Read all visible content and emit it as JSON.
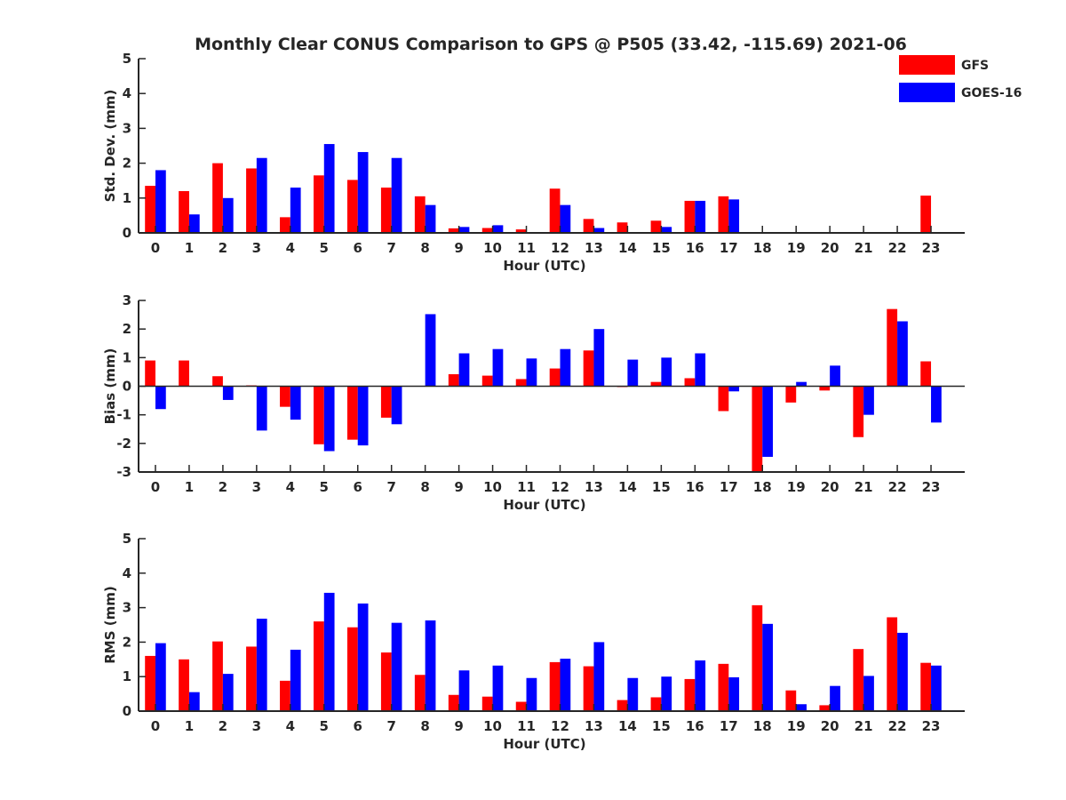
{
  "figure": {
    "title": "Monthly Clear CONUS Comparison to GPS @ P505 (33.42, -115.69) 2021-06"
  },
  "legend": {
    "placement": "top-right",
    "entries": [
      {
        "label": "GFS",
        "color": "#ff0000"
      },
      {
        "label": "GOES-16",
        "color": "#0000ff"
      }
    ]
  },
  "chart_data": [
    {
      "type": "bar",
      "ylabel": "Std. Dev. (mm)",
      "xlabel": "Hour (UTC)",
      "ylim": [
        0,
        5
      ],
      "yticks": [
        0,
        1,
        2,
        3,
        4,
        5
      ],
      "categories": [
        "0",
        "1",
        "2",
        "3",
        "4",
        "5",
        "6",
        "7",
        "8",
        "9",
        "10",
        "11",
        "12",
        "13",
        "14",
        "15",
        "16",
        "17",
        "18",
        "19",
        "20",
        "21",
        "22",
        "23"
      ],
      "series": [
        {
          "name": "GFS",
          "color": "#ff0000",
          "values": [
            1.35,
            1.2,
            2.0,
            1.85,
            0.45,
            1.65,
            1.52,
            1.3,
            1.05,
            0.13,
            0.14,
            0.1,
            1.27,
            0.4,
            0.3,
            0.35,
            0.92,
            1.05,
            null,
            null,
            null,
            null,
            null,
            1.07
          ]
        },
        {
          "name": "GOES-16",
          "color": "#0000ff",
          "values": [
            1.8,
            0.53,
            1.0,
            2.15,
            1.3,
            2.55,
            2.32,
            2.15,
            0.8,
            0.17,
            0.22,
            null,
            0.8,
            0.14,
            null,
            0.17,
            0.92,
            0.96,
            null,
            null,
            null,
            null,
            null,
            null
          ]
        }
      ]
    },
    {
      "type": "bar",
      "ylabel": "Bias (mm)",
      "xlabel": "Hour (UTC)",
      "ylim": [
        -3,
        3
      ],
      "yticks": [
        -3,
        -2,
        -1,
        0,
        1,
        2,
        3
      ],
      "categories": [
        "0",
        "1",
        "2",
        "3",
        "4",
        "5",
        "6",
        "7",
        "8",
        "9",
        "10",
        "11",
        "12",
        "13",
        "14",
        "15",
        "16",
        "17",
        "18",
        "19",
        "20",
        "21",
        "22",
        "23"
      ],
      "series": [
        {
          "name": "GFS",
          "color": "#ff0000",
          "values": [
            0.9,
            0.9,
            0.35,
            0.03,
            -0.72,
            -2.03,
            -1.87,
            -1.1,
            null,
            0.42,
            0.37,
            0.25,
            0.62,
            1.25,
            -0.03,
            0.15,
            0.28,
            -0.87,
            -3.0,
            -0.57,
            -0.15,
            -1.78,
            2.7,
            0.87
          ]
        },
        {
          "name": "GOES-16",
          "color": "#0000ff",
          "values": [
            -0.8,
            null,
            -0.48,
            -1.55,
            -1.17,
            -2.27,
            -2.07,
            -1.33,
            2.52,
            1.15,
            1.3,
            0.97,
            1.3,
            2.0,
            0.93,
            1.0,
            1.15,
            -0.18,
            -2.47,
            0.15,
            0.72,
            -1.0,
            2.27,
            -1.27
          ]
        }
      ]
    },
    {
      "type": "bar",
      "ylabel": "RMS (mm)",
      "xlabel": "Hour (UTC)",
      "ylim": [
        0,
        5
      ],
      "yticks": [
        0,
        1,
        2,
        3,
        4,
        5
      ],
      "categories": [
        "0",
        "1",
        "2",
        "3",
        "4",
        "5",
        "6",
        "7",
        "8",
        "9",
        "10",
        "11",
        "12",
        "13",
        "14",
        "15",
        "16",
        "17",
        "18",
        "19",
        "20",
        "21",
        "22",
        "23"
      ],
      "series": [
        {
          "name": "GFS",
          "color": "#ff0000",
          "values": [
            1.6,
            1.5,
            2.02,
            1.87,
            0.88,
            2.6,
            2.43,
            1.7,
            1.05,
            0.47,
            0.42,
            0.27,
            1.42,
            1.3,
            0.32,
            0.4,
            0.93,
            1.37,
            3.07,
            0.6,
            0.17,
            1.8,
            2.72,
            1.4
          ]
        },
        {
          "name": "GOES-16",
          "color": "#0000ff",
          "values": [
            1.97,
            0.55,
            1.08,
            2.68,
            1.78,
            3.43,
            3.12,
            2.56,
            2.63,
            1.18,
            1.32,
            0.96,
            1.52,
            2.0,
            0.96,
            1.0,
            1.47,
            0.98,
            2.53,
            0.2,
            0.73,
            1.02,
            2.27,
            1.32
          ]
        }
      ]
    }
  ]
}
